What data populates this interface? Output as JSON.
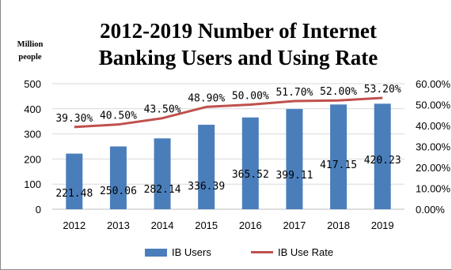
{
  "chart_data": {
    "type": "bar",
    "title_lines": [
      "2012-2019 Number of Internet",
      "Banking Users and Using Rate"
    ],
    "unit_lines": [
      "Million",
      "people"
    ],
    "categories": [
      "2012",
      "2013",
      "2014",
      "2015",
      "2016",
      "2017",
      "2018",
      "2019"
    ],
    "series": [
      {
        "name": "IB Users",
        "type": "bar",
        "axis": "left",
        "color": "#4a7ebb",
        "values": [
          221.48,
          250.06,
          282.14,
          336.39,
          365.52,
          399.11,
          417.15,
          420.23
        ],
        "labels": [
          "221.48",
          "250.06",
          "282.14",
          "336.39",
          "365.52",
          "399.11",
          "417.15",
          "420.23"
        ]
      },
      {
        "name": "IB Use Rate",
        "type": "line",
        "axis": "right",
        "color": "#c0504d",
        "values": [
          39.3,
          40.5,
          43.5,
          48.9,
          50.0,
          51.7,
          52.0,
          53.2
        ],
        "labels": [
          "39.30%",
          "40.50%",
          "43.50%",
          "48.90%",
          "50.00%",
          "51.70%",
          "52.00%",
          "53.20%"
        ]
      }
    ],
    "y_left": {
      "min": 0,
      "max": 500,
      "ticks": [
        "0",
        "100",
        "200",
        "300",
        "400",
        "500"
      ]
    },
    "y_right": {
      "min": 0,
      "max": 60,
      "ticks": [
        "0.00%",
        "10.00%",
        "20.00%",
        "30.00%",
        "40.00%",
        "50.00%",
        "60.00%"
      ]
    },
    "grid": true,
    "legend_position": "bottom"
  }
}
